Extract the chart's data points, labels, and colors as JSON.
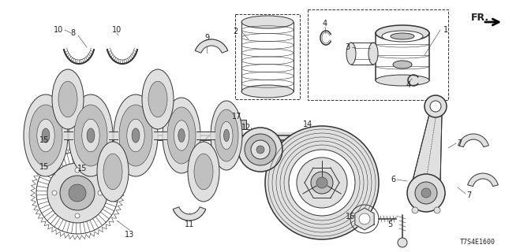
{
  "background_color": "#ffffff",
  "part_code": "T7S4E1600",
  "fr_label": "FR.",
  "line_color": "#333333",
  "text_color": "#222222",
  "label_fontsize": 7,
  "part_code_fontsize": 6,
  "fr_fontsize": 9,
  "figw": 6.4,
  "figh": 3.2,
  "dpi": 100,
  "xmax": 640,
  "ymax": 320
}
